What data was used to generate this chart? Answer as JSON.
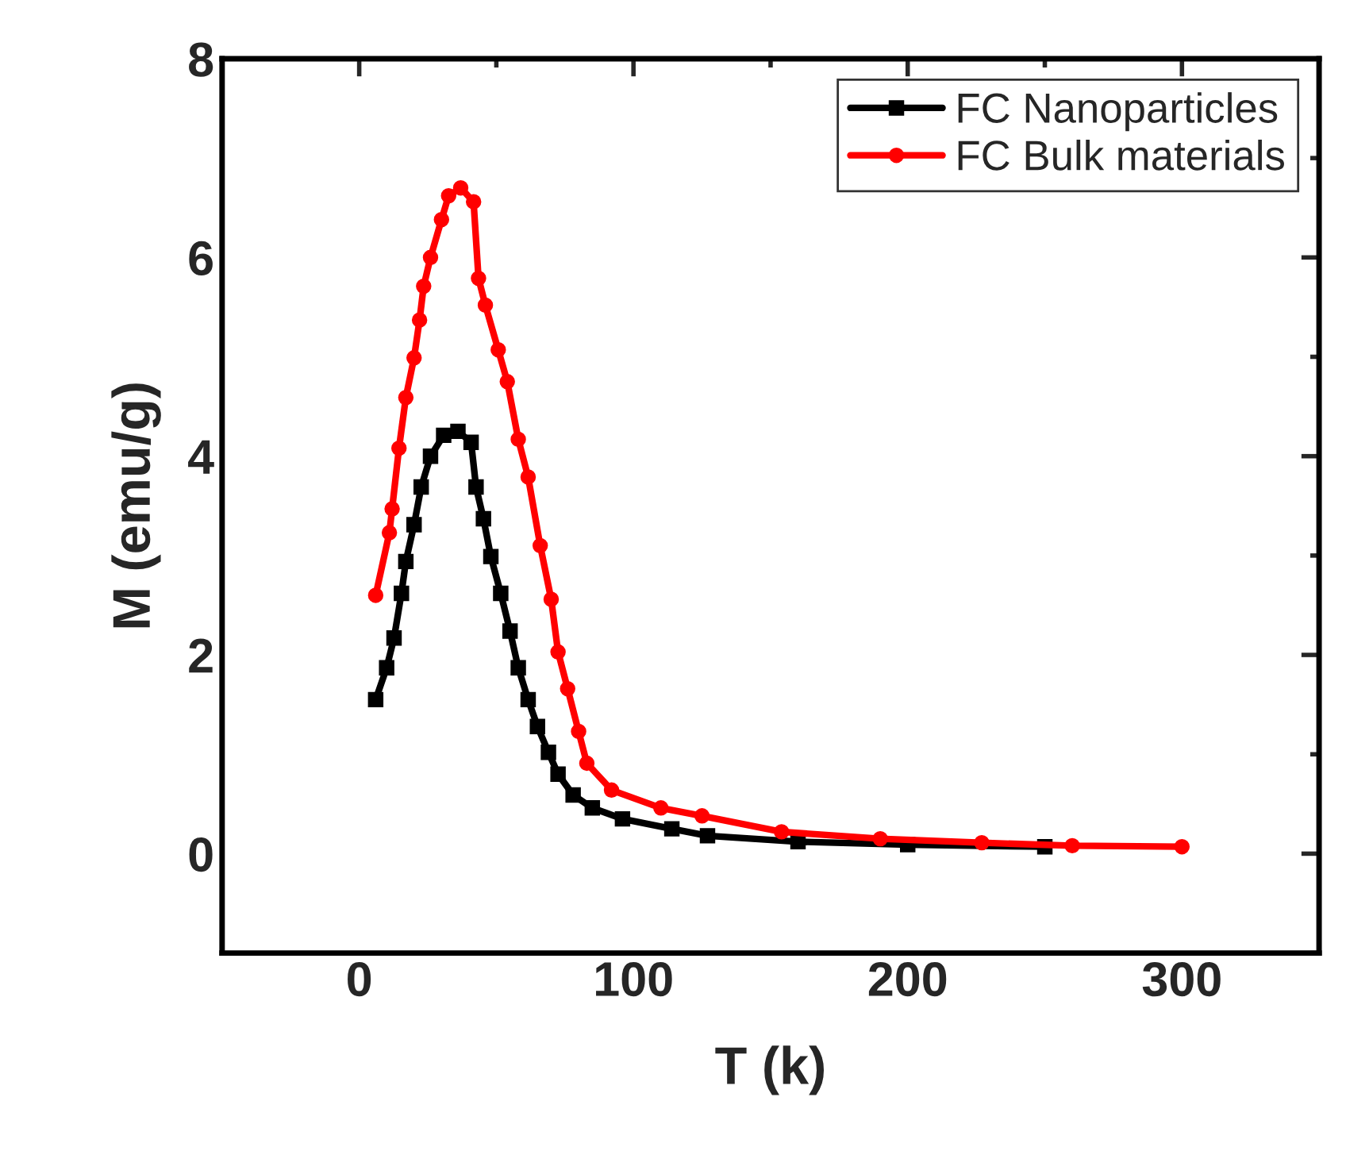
{
  "chart_data": {
    "type": "line",
    "xlabel": "T (k)",
    "ylabel": "M (emu/g)",
    "xlim": [
      -50,
      350
    ],
    "xticks": [
      0,
      100,
      200,
      300
    ],
    "ylim": [
      -1,
      8
    ],
    "yticks": [
      0,
      2,
      4,
      6,
      8
    ],
    "grid": false,
    "legend": "top right",
    "line_style": "solid",
    "series": [
      {
        "name": "FC Nanoparticles",
        "color": "#000000",
        "marker": "square",
        "x": [
          6,
          10,
          12.7,
          15.4,
          17,
          20,
          22.6,
          26,
          30.8,
          36,
          40.8,
          42.6,
          45.3,
          48,
          51.6,
          55,
          58,
          61.6,
          65,
          69,
          72.5,
          78,
          85,
          96,
          114,
          127,
          160,
          200,
          250
        ],
        "values": [
          1.55,
          1.87,
          2.17,
          2.62,
          2.94,
          3.31,
          3.69,
          4.0,
          4.21,
          4.25,
          4.14,
          3.69,
          3.37,
          2.99,
          2.62,
          2.24,
          1.87,
          1.55,
          1.28,
          1.02,
          0.8,
          0.59,
          0.46,
          0.35,
          0.25,
          0.18,
          0.12,
          0.09,
          0.07
        ]
      },
      {
        "name": "FC Bulk materials",
        "color": "#ff0000",
        "marker": "circle",
        "x": [
          6,
          11,
          12,
          14.5,
          17,
          20,
          22,
          23.5,
          26,
          30,
          32.6,
          37,
          41.7,
          43.5,
          46,
          50.7,
          54,
          58,
          61.6,
          66,
          70,
          72.5,
          76,
          80,
          83,
          92,
          110,
          125,
          154,
          190,
          227,
          260,
          300
        ],
        "values": [
          2.6,
          3.23,
          3.47,
          4.08,
          4.59,
          4.99,
          5.37,
          5.71,
          6.0,
          6.38,
          6.62,
          6.7,
          6.56,
          5.79,
          5.52,
          5.07,
          4.75,
          4.17,
          3.79,
          3.1,
          2.56,
          2.03,
          1.66,
          1.23,
          0.91,
          0.64,
          0.46,
          0.38,
          0.22,
          0.15,
          0.11,
          0.08,
          0.07
        ]
      }
    ]
  }
}
